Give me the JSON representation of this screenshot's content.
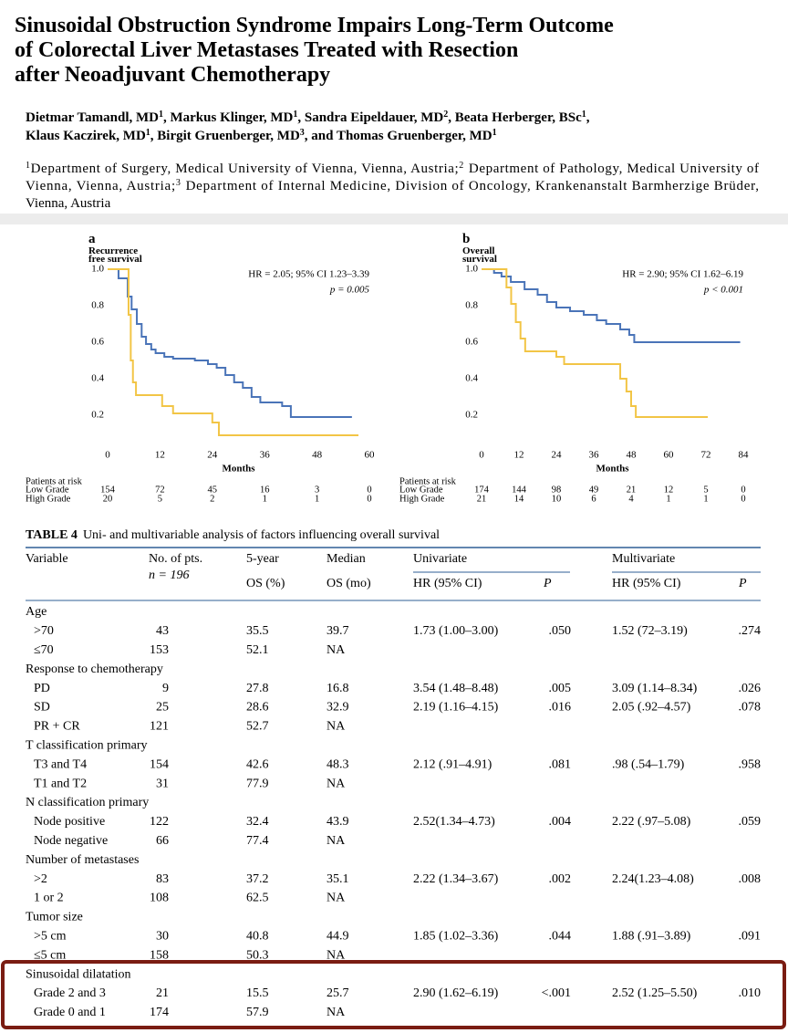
{
  "header": {
    "title": [
      "Sinusoidal Obstruction Syndrome Impairs Long-Term Outcome",
      "of Colorectal Liver Metastases Treated with Resection",
      "after Neoadjuvant Chemotherapy"
    ],
    "authors": [
      [
        {
          "text": "Dietmar Tamandl, MD",
          "sup": "1"
        },
        {
          "text": ", Markus Klinger, MD",
          "sup": "1"
        },
        {
          "text": ", Sandra Eipeldauer, MD",
          "sup": "2"
        },
        {
          "text": ", Beata Herberger, BSc",
          "sup": "1"
        },
        {
          "text": ","
        }
      ],
      [
        {
          "text": "Klaus Kaczirek, MD",
          "sup": "1"
        },
        {
          "text": ", Birgit Gruenberger, MD",
          "sup": "3"
        },
        {
          "text": ", and Thomas Gruenberger, MD",
          "sup": "1"
        }
      ]
    ],
    "affiliations": [
      [
        {
          "sup": "1",
          "text": "Department of Surgery, Medical University of Vienna, Vienna, Austria;"
        },
        {
          "sup": "2",
          "text": "Department of Pathology, Medical University of"
        }
      ],
      [
        {
          "text": "Vienna, Vienna, Austria;"
        },
        {
          "sup": "3",
          "text": "Department of Internal Medicine, Division of Oncology, Krankenanstalt Barmherzige Brüder,"
        }
      ],
      [
        {
          "text": "Vienna, Austria"
        }
      ]
    ]
  },
  "chart_data": [
    {
      "type": "line",
      "panel": "a",
      "ylabel": [
        "Recurrence",
        "free survival"
      ],
      "xlabel": "Months",
      "annotations": [
        "HR = 2.05; 95% CI 1.23–3.39",
        "p = 0.005"
      ],
      "xlim": [
        0,
        60
      ],
      "xticks": [
        0,
        12,
        24,
        36,
        48,
        60
      ],
      "ylim": [
        0,
        1
      ],
      "yticks": [
        0.2,
        0.4,
        0.6,
        0.8,
        {
          "value": 1,
          "label": "1.0"
        }
      ],
      "series": [
        {
          "color": "#4a74b8",
          "x": [
            0,
            2.5,
            2.5,
            4.6,
            4.6,
            5.5,
            5.5,
            6.7,
            6.7,
            7.8,
            7.8,
            8.8,
            8.8,
            10,
            10,
            11,
            11,
            13,
            13,
            15,
            15,
            20,
            20,
            23,
            23,
            25,
            25,
            27,
            27,
            29,
            29,
            31,
            31,
            33,
            33,
            35,
            35,
            40,
            40,
            42,
            42,
            56
          ],
          "values": [
            1,
            1,
            0.95,
            0.95,
            0.85,
            0.85,
            0.78,
            0.78,
            0.7,
            0.7,
            0.63,
            0.63,
            0.59,
            0.59,
            0.56,
            0.56,
            0.54,
            0.54,
            0.52,
            0.52,
            0.51,
            0.51,
            0.5,
            0.5,
            0.48,
            0.48,
            0.46,
            0.46,
            0.42,
            0.42,
            0.38,
            0.38,
            0.35,
            0.35,
            0.3,
            0.3,
            0.27,
            0.27,
            0.25,
            0.25,
            0.19,
            0.19
          ]
        },
        {
          "color": "#f2c546",
          "x": [
            0,
            4.8,
            4.8,
            5.3,
            5.3,
            5.8,
            5.8,
            6.5,
            6.5,
            12.5,
            12.5,
            15,
            15,
            24,
            24,
            25.5,
            25.5,
            57.5
          ],
          "values": [
            1,
            1,
            0.75,
            0.75,
            0.5,
            0.5,
            0.38,
            0.38,
            0.31,
            0.31,
            0.25,
            0.25,
            0.21,
            0.21,
            0.16,
            0.16,
            0.09,
            0.09
          ]
        }
      ],
      "at_risk": {
        "title": "Patients at risk",
        "rows": [
          {
            "name": "Low Grade",
            "values": [
              154,
              72,
              45,
              16,
              3,
              0
            ]
          },
          {
            "name": "High Grade",
            "values": [
              20,
              5,
              2,
              1,
              1,
              0
            ]
          }
        ]
      }
    },
    {
      "type": "line",
      "panel": "b",
      "ylabel": [
        "Overall",
        "survival"
      ],
      "xlabel": "Months",
      "annotations": [
        "HR = 2.90; 95% CI 1.62–6.19",
        "p < 0.001"
      ],
      "xlim": [
        0,
        84
      ],
      "xticks": [
        0,
        12,
        24,
        36,
        48,
        60,
        72,
        84
      ],
      "ylim": [
        0,
        1
      ],
      "yticks": [
        0.2,
        0.4,
        0.6,
        0.8,
        {
          "value": 1,
          "label": "1.0"
        }
      ],
      "series": [
        {
          "color": "#4a74b8",
          "x": [
            0,
            4,
            4,
            6.4,
            6.4,
            9.4,
            9.4,
            13.8,
            13.8,
            18,
            18,
            21,
            21,
            24,
            24,
            28.4,
            28.4,
            32.8,
            32.8,
            37,
            37,
            40,
            40,
            44.5,
            44.5,
            47.4,
            47.4,
            49,
            49,
            83
          ],
          "values": [
            1,
            1,
            0.98,
            0.98,
            0.96,
            0.96,
            0.93,
            0.93,
            0.89,
            0.89,
            0.86,
            0.86,
            0.82,
            0.82,
            0.79,
            0.79,
            0.77,
            0.77,
            0.75,
            0.75,
            0.72,
            0.72,
            0.7,
            0.7,
            0.67,
            0.67,
            0.64,
            0.64,
            0.6,
            0.6
          ]
        },
        {
          "color": "#f2c546",
          "x": [
            0,
            8,
            8,
            9.5,
            9.5,
            11,
            11,
            12.5,
            12.5,
            14,
            14,
            24,
            24,
            26.5,
            26.5,
            44.5,
            44.5,
            46.5,
            46.5,
            48,
            48,
            49.5,
            49.5,
            72.6
          ],
          "values": [
            1,
            1,
            0.9,
            0.9,
            0.81,
            0.81,
            0.71,
            0.71,
            0.62,
            0.62,
            0.55,
            0.55,
            0.52,
            0.52,
            0.48,
            0.48,
            0.4,
            0.4,
            0.33,
            0.33,
            0.25,
            0.25,
            0.19,
            0.19
          ]
        }
      ],
      "at_risk": {
        "title": "Patients at risk",
        "rows": [
          {
            "name": "Low Grade",
            "values": [
              174,
              144,
              98,
              49,
              21,
              12,
              5,
              0
            ]
          },
          {
            "name": "High Grade",
            "values": [
              21,
              14,
              10,
              6,
              4,
              1,
              1,
              0
            ]
          }
        ]
      }
    }
  ],
  "table": {
    "caption_label": "TABLE 4",
    "caption": "Uni- and multivariable analysis of factors influencing overall survival",
    "header": {
      "variable": "Variable",
      "pts": "No. of pts.",
      "n": "n = 196",
      "os5_1": "5-year",
      "os5_2": "OS (%)",
      "med_1": "Median",
      "med_2": "OS (mo)",
      "univariate": "Univariate",
      "multivariate": "Multivariate",
      "uhr": "HR (95% CI)",
      "up": "P",
      "mhr": "HR (95% CI)",
      "mp": "P"
    },
    "groups": [
      {
        "label": "Age",
        "rows": [
          [
            ">70",
            "43",
            "35.5",
            "39.7",
            "1.73 (1.00–3.00)",
            ".050",
            "1.52 (72–3.19)",
            ".274"
          ],
          [
            "≤70",
            "153",
            "52.1",
            "NA"
          ]
        ]
      },
      {
        "label": "Response to chemotherapy",
        "rows": [
          [
            "PD",
            "9",
            "27.8",
            "16.8",
            "3.54 (1.48–8.48)",
            ".005",
            "3.09 (1.14–8.34)",
            ".026"
          ],
          [
            "SD",
            "25",
            "28.6",
            "32.9",
            "2.19 (1.16–4.15)",
            ".016",
            "2.05 (.92–4.57)",
            ".078"
          ],
          [
            "PR + CR",
            "121",
            "52.7",
            "NA"
          ]
        ]
      },
      {
        "label": "T classification primary",
        "rows": [
          [
            "T3 and T4",
            "154",
            "42.6",
            "48.3",
            "2.12 (.91–4.91)",
            ".081",
            ".98 (.54–1.79)",
            ".958"
          ],
          [
            "T1 and T2",
            "31",
            "77.9",
            "NA"
          ]
        ]
      },
      {
        "label": "N classification primary",
        "rows": [
          [
            "Node positive",
            "122",
            "32.4",
            "43.9",
            "2.52(1.34–4.73)",
            ".004",
            "2.22 (.97–5.08)",
            ".059"
          ],
          [
            "Node negative",
            "66",
            "77.4",
            "NA"
          ]
        ]
      },
      {
        "label": "Number of metastases",
        "rows": [
          [
            ">2",
            "83",
            "37.2",
            "35.1",
            "2.22 (1.34–3.67)",
            ".002",
            "2.24(1.23–4.08)",
            ".008"
          ],
          [
            "1 or 2",
            "108",
            "62.5",
            "NA"
          ]
        ]
      },
      {
        "label": "Tumor size",
        "rows": [
          [
            ">5 cm",
            "30",
            "40.8",
            "44.9",
            "1.85 (1.02–3.36)",
            ".044",
            "1.88 (.91–3.89)",
            ".091"
          ],
          [
            "≤5 cm",
            "158",
            "50.3",
            "NA"
          ]
        ]
      },
      {
        "label": "Sinusoidal dilatation",
        "rows": [
          [
            "Grade 2 and 3",
            "21",
            "15.5",
            "25.7",
            "2.90 (1.62–6.19)",
            "<.001",
            "2.52 (1.25–5.50)",
            ".010"
          ],
          [
            "Grade 0 and 1",
            "174",
            "57.9",
            "NA"
          ]
        ]
      }
    ]
  }
}
